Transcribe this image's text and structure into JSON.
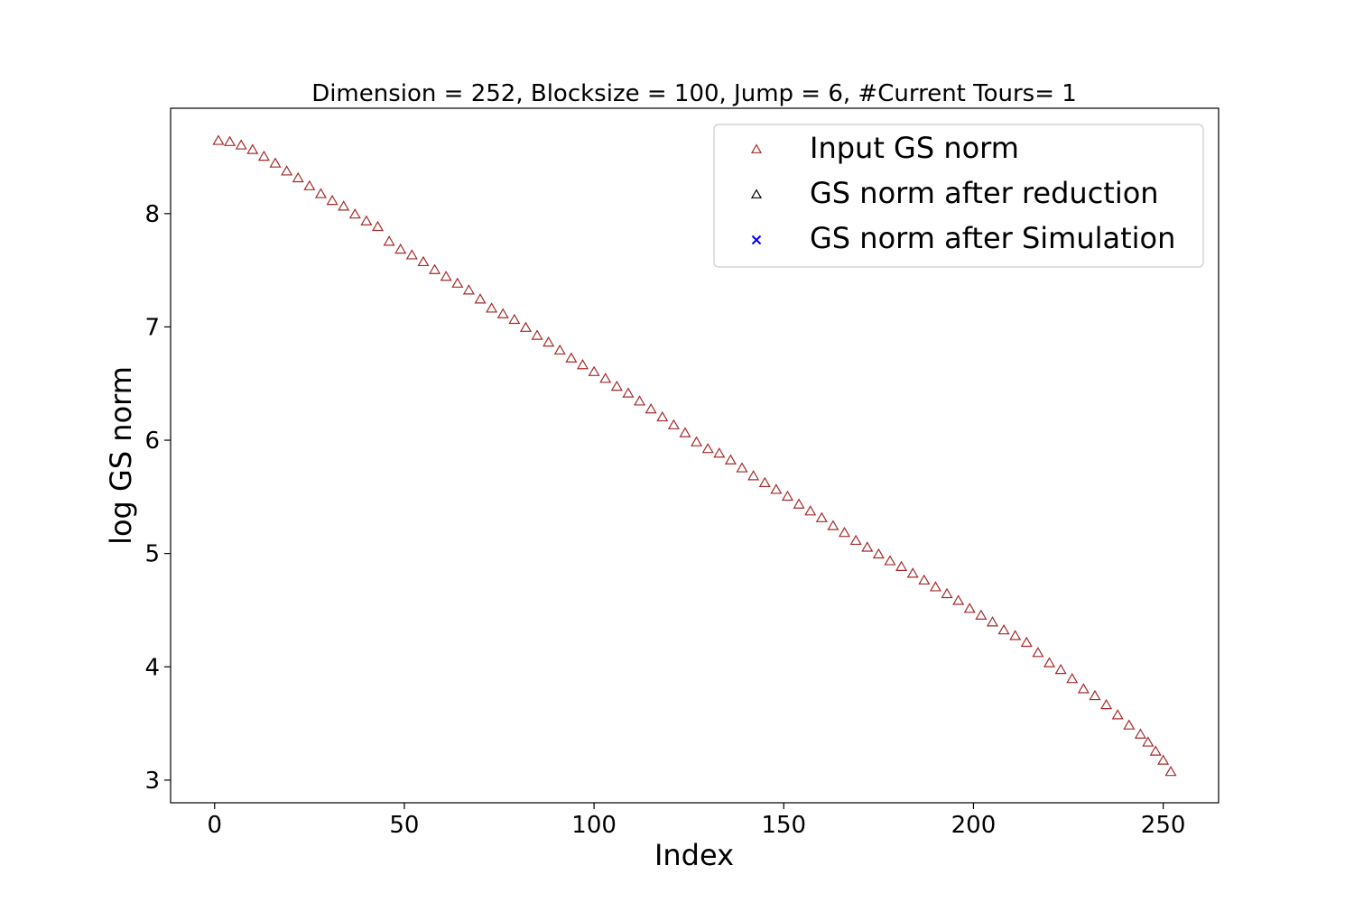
{
  "chart_data": {
    "type": "scatter",
    "title": "Dimension = 252, Blocksize = 100, Jump = 6, #Current Tours= 1",
    "xlabel": "Index",
    "ylabel": "log GS norm",
    "xlim": [
      -11.6,
      264.6
    ],
    "ylim": [
      2.8,
      8.93
    ],
    "xticks": [
      0,
      50,
      100,
      150,
      200,
      250
    ],
    "yticks": [
      3,
      4,
      5,
      6,
      7,
      8
    ],
    "legend_position": "top-right",
    "series": [
      {
        "name": "Input GS norm",
        "marker": "triangle",
        "color": "#a52a2a",
        "x": [
          1,
          4,
          7,
          10,
          13,
          16,
          19,
          22,
          25,
          28,
          31,
          34,
          37,
          40,
          43,
          46,
          49,
          52,
          55,
          58,
          61,
          64,
          67,
          70,
          73,
          76,
          79,
          82,
          85,
          88,
          91,
          94,
          97,
          100,
          103,
          106,
          109,
          112,
          115,
          118,
          121,
          124,
          127,
          130,
          133,
          136,
          139,
          142,
          145,
          148,
          151,
          154,
          157,
          160,
          163,
          166,
          169,
          172,
          175,
          178,
          181,
          184,
          187,
          190,
          193,
          196,
          199,
          202,
          205,
          208,
          211,
          214,
          217,
          220,
          223,
          226,
          229,
          232,
          235,
          238,
          241,
          244,
          246,
          248,
          250,
          252
        ],
        "y": [
          8.64,
          8.63,
          8.6,
          8.56,
          8.5,
          8.44,
          8.37,
          8.31,
          8.24,
          8.17,
          8.11,
          8.06,
          7.99,
          7.93,
          7.88,
          7.75,
          7.68,
          7.63,
          7.57,
          7.5,
          7.44,
          7.38,
          7.32,
          7.24,
          7.16,
          7.11,
          7.06,
          6.99,
          6.92,
          6.86,
          6.79,
          6.72,
          6.66,
          6.6,
          6.54,
          6.47,
          6.41,
          6.34,
          6.27,
          6.2,
          6.13,
          6.06,
          5.98,
          5.92,
          5.88,
          5.82,
          5.75,
          5.68,
          5.62,
          5.56,
          5.5,
          5.43,
          5.37,
          5.31,
          5.24,
          5.18,
          5.11,
          5.05,
          4.99,
          4.93,
          4.88,
          4.82,
          4.76,
          4.7,
          4.64,
          4.58,
          4.51,
          4.45,
          4.39,
          4.32,
          4.27,
          4.21,
          4.12,
          4.03,
          3.97,
          3.89,
          3.8,
          3.74,
          3.66,
          3.57,
          3.48,
          3.4,
          3.33,
          3.25,
          3.17,
          3.07
        ]
      },
      {
        "name": "GS norm after reduction",
        "marker": "triangle",
        "color": "#000000",
        "x": [],
        "y": []
      },
      {
        "name": "GS norm after Simulation",
        "marker": "x",
        "color": "#0000ff",
        "x": [],
        "y": []
      }
    ]
  }
}
